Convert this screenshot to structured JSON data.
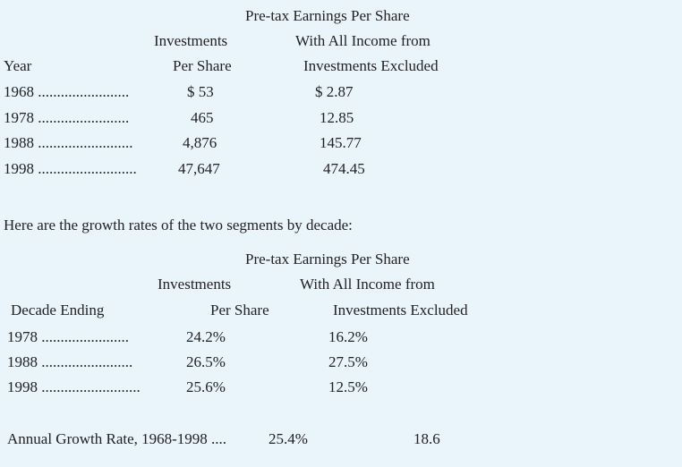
{
  "table1": {
    "header": {
      "pretax_line1": "Pre-tax Earnings Per Share",
      "investments_line1": "Investments",
      "pretax_line2": "With All Income from",
      "year_label": "Year",
      "investments_line2": "Per Share",
      "pretax_line3": "Investments Excluded"
    },
    "rows": [
      {
        "year": "1968 ........................",
        "investments": "$ 53",
        "pretax": "$ 2.87"
      },
      {
        "year": "1978 ........................",
        "investments": "465",
        "pretax": "12.85"
      },
      {
        "year": "1988 .........................",
        "investments": "4,876",
        "pretax": "145.77"
      },
      {
        "year": "1998 ..........................",
        "investments": "47,647",
        "pretax": "474.45"
      }
    ]
  },
  "intro_text": "Here are the growth rates of the two segments by decade:",
  "table2": {
    "header": {
      "pretax_line1": "Pre-tax Earnings Per Share",
      "investments_line1": "Investments",
      "pretax_line2": "With All Income from",
      "decade_label": "Decade Ending",
      "investments_line2": "Per Share",
      "pretax_line3": "Investments Excluded"
    },
    "rows": [
      {
        "decade": "1978 .......................",
        "investments": "24.2%",
        "pretax": "16.2%"
      },
      {
        "decade": "1988 ........................",
        "investments": "26.5%",
        "pretax": "27.5%"
      },
      {
        "decade": "1998 ..........................",
        "investments": "25.6%",
        "pretax": "12.5%"
      }
    ]
  },
  "annual": {
    "label": "Annual Growth Rate, 1968-1998 ....",
    "investments": "25.4%",
    "pretax": "18.6"
  }
}
